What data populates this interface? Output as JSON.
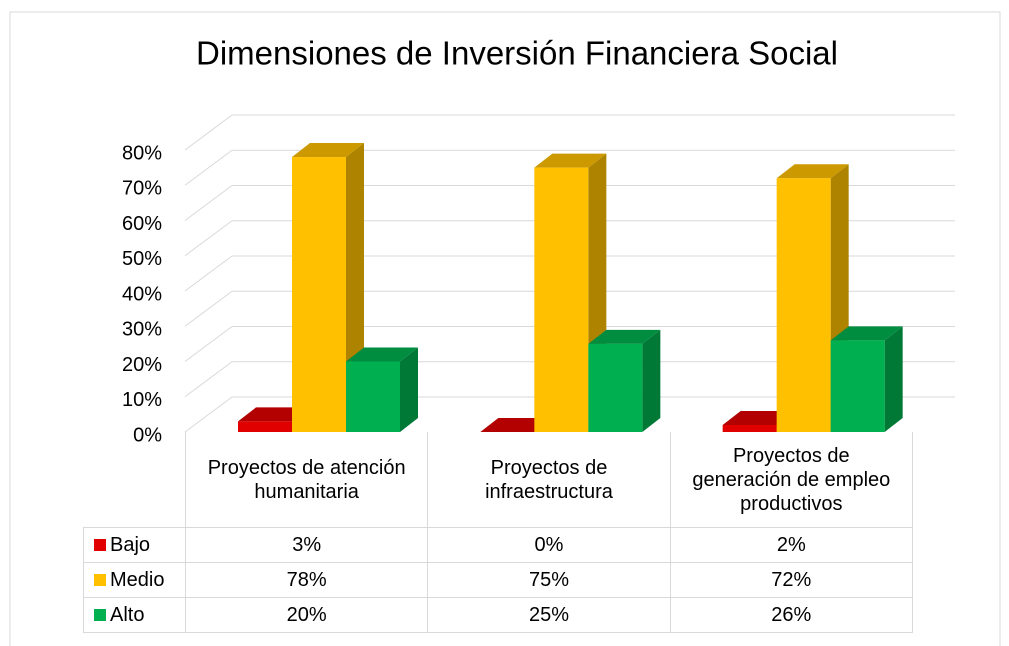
{
  "chart_data": {
    "type": "bar3d",
    "title": "Dimensiones de Inversión Financiera Social",
    "categories": [
      "Proyectos de atención humanitaria",
      "Proyectos de infraestructura",
      "Proyectos de generación de empleo productivos"
    ],
    "series": [
      {
        "name": "Bajo",
        "color": "#e00000",
        "values": [
          3,
          0,
          2
        ],
        "value_labels": [
          "3%",
          "0%",
          "2%"
        ]
      },
      {
        "name": "Medio",
        "color": "#ffc000",
        "values": [
          78,
          75,
          72
        ],
        "value_labels": [
          "78%",
          "75%",
          "72%"
        ]
      },
      {
        "name": "Alto",
        "color": "#00b050",
        "values": [
          20,
          25,
          26
        ],
        "value_labels": [
          "20%",
          "25%",
          "26%"
        ]
      }
    ],
    "ylim": [
      0,
      80
    ],
    "yticks": [
      {
        "value": 0,
        "label": "0%"
      },
      {
        "value": 10,
        "label": "10%"
      },
      {
        "value": 20,
        "label": "20%"
      },
      {
        "value": 30,
        "label": "30%"
      },
      {
        "value": 40,
        "label": "40%"
      },
      {
        "value": 50,
        "label": "50%"
      },
      {
        "value": 60,
        "label": "60%"
      },
      {
        "value": 70,
        "label": "70%"
      },
      {
        "value": 80,
        "label": "80%"
      }
    ],
    "grid": true
  }
}
